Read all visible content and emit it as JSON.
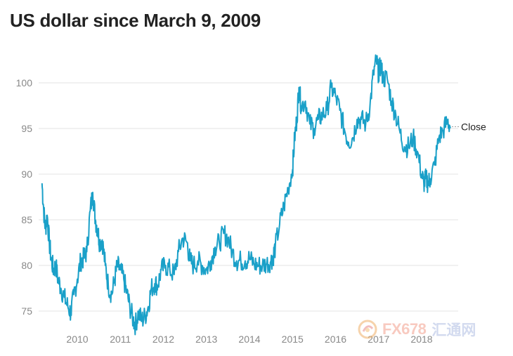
{
  "title": "US dollar since March 9, 2009",
  "watermark": {
    "brand": "FX678",
    "cn_name": "汇通网",
    "logo_icon": "fx678-swirl-logo"
  },
  "chart_data": {
    "type": "line",
    "title": "US dollar since March 9, 2009",
    "xlabel": "",
    "ylabel": "",
    "ylim": [
      72.5,
      104
    ],
    "y_ticks": [
      75,
      80,
      85,
      90,
      95,
      100
    ],
    "y_tick_labels": [
      "75",
      "80",
      "85",
      "90",
      "95",
      "100"
    ],
    "x_ticks": [
      2010,
      2011,
      2012,
      2013,
      2014,
      2015,
      2016,
      2017,
      2018
    ],
    "x_tick_labels": [
      "2010",
      "2011",
      "2012",
      "2013",
      "2014",
      "2015",
      "2016",
      "2017",
      "2018"
    ],
    "x_range": [
      2009.18,
      2018.67
    ],
    "grid": "horizontal",
    "end_label": "Close",
    "line_color": "#1aa0c8",
    "series": [
      {
        "name": "",
        "x": [
          2009.18,
          2009.22,
          2009.26,
          2009.3,
          2009.35,
          2009.4,
          2009.45,
          2009.5,
          2009.55,
          2009.62,
          2009.7,
          2009.78,
          2009.85,
          2009.92,
          2010.0,
          2010.08,
          2010.15,
          2010.22,
          2010.3,
          2010.36,
          2010.42,
          2010.47,
          2010.52,
          2010.58,
          2010.65,
          2010.72,
          2010.8,
          2010.87,
          2010.93,
          2011.0,
          2011.08,
          2011.15,
          2011.22,
          2011.3,
          2011.35,
          2011.42,
          2011.5,
          2011.58,
          2011.65,
          2011.72,
          2011.8,
          2011.87,
          2011.95,
          2012.05,
          2012.15,
          2012.25,
          2012.35,
          2012.45,
          2012.55,
          2012.62,
          2012.7,
          2012.8,
          2012.9,
          2013.0,
          2013.1,
          2013.2,
          2013.3,
          2013.4,
          2013.5,
          2013.6,
          2013.7,
          2013.8,
          2013.9,
          2014.0,
          2014.1,
          2014.2,
          2014.3,
          2014.4,
          2014.5,
          2014.55,
          2014.6,
          2014.7,
          2014.8,
          2014.9,
          2015.0,
          2015.05,
          2015.1,
          2015.15,
          2015.2,
          2015.3,
          2015.4,
          2015.5,
          2015.6,
          2015.7,
          2015.8,
          2015.9,
          2016.0,
          2016.1,
          2016.2,
          2016.3,
          2016.4,
          2016.5,
          2016.6,
          2016.7,
          2016.8,
          2016.88,
          2016.95,
          2017.0,
          2017.05,
          2017.1,
          2017.2,
          2017.3,
          2017.4,
          2017.5,
          2017.6,
          2017.7,
          2017.8,
          2017.9,
          2018.0,
          2018.05,
          2018.1,
          2018.15,
          2018.2,
          2018.3,
          2018.4,
          2018.5,
          2018.6,
          2018.67
        ],
        "values": [
          89.0,
          86.0,
          84.0,
          85.5,
          82.5,
          80.5,
          79.5,
          80.0,
          78.5,
          77.5,
          76.5,
          75.5,
          74.8,
          76.8,
          78.5,
          80.5,
          80.8,
          81.5,
          86.0,
          88.0,
          85.0,
          84.0,
          82.5,
          82.8,
          80.0,
          77.8,
          76.8,
          78.5,
          80.0,
          79.5,
          78.5,
          77.0,
          75.5,
          74.0,
          73.5,
          74.8,
          74.0,
          74.5,
          75.5,
          77.5,
          78.0,
          77.8,
          79.5,
          80.0,
          79.5,
          79.0,
          81.5,
          83.0,
          82.5,
          80.5,
          80.0,
          80.5,
          80.0,
          79.5,
          80.5,
          82.0,
          82.5,
          83.5,
          83.0,
          81.5,
          80.5,
          80.5,
          80.5,
          80.8,
          80.2,
          80.0,
          80.0,
          80.2,
          80.5,
          81.0,
          82.0,
          84.5,
          86.5,
          88.5,
          90.5,
          94.0,
          96.0,
          99.5,
          97.5,
          98.0,
          95.5,
          95.0,
          96.0,
          96.5,
          97.0,
          99.5,
          98.5,
          97.0,
          95.0,
          93.5,
          94.0,
          96.0,
          96.0,
          95.5,
          97.5,
          101.0,
          102.5,
          101.0,
          102.0,
          100.5,
          100.5,
          98.0,
          96.5,
          94.5,
          93.0,
          93.0,
          94.0,
          92.5,
          90.0,
          89.0,
          89.5,
          89.0,
          89.5,
          91.0,
          94.0,
          94.8,
          95.8,
          95.2
        ]
      }
    ]
  }
}
